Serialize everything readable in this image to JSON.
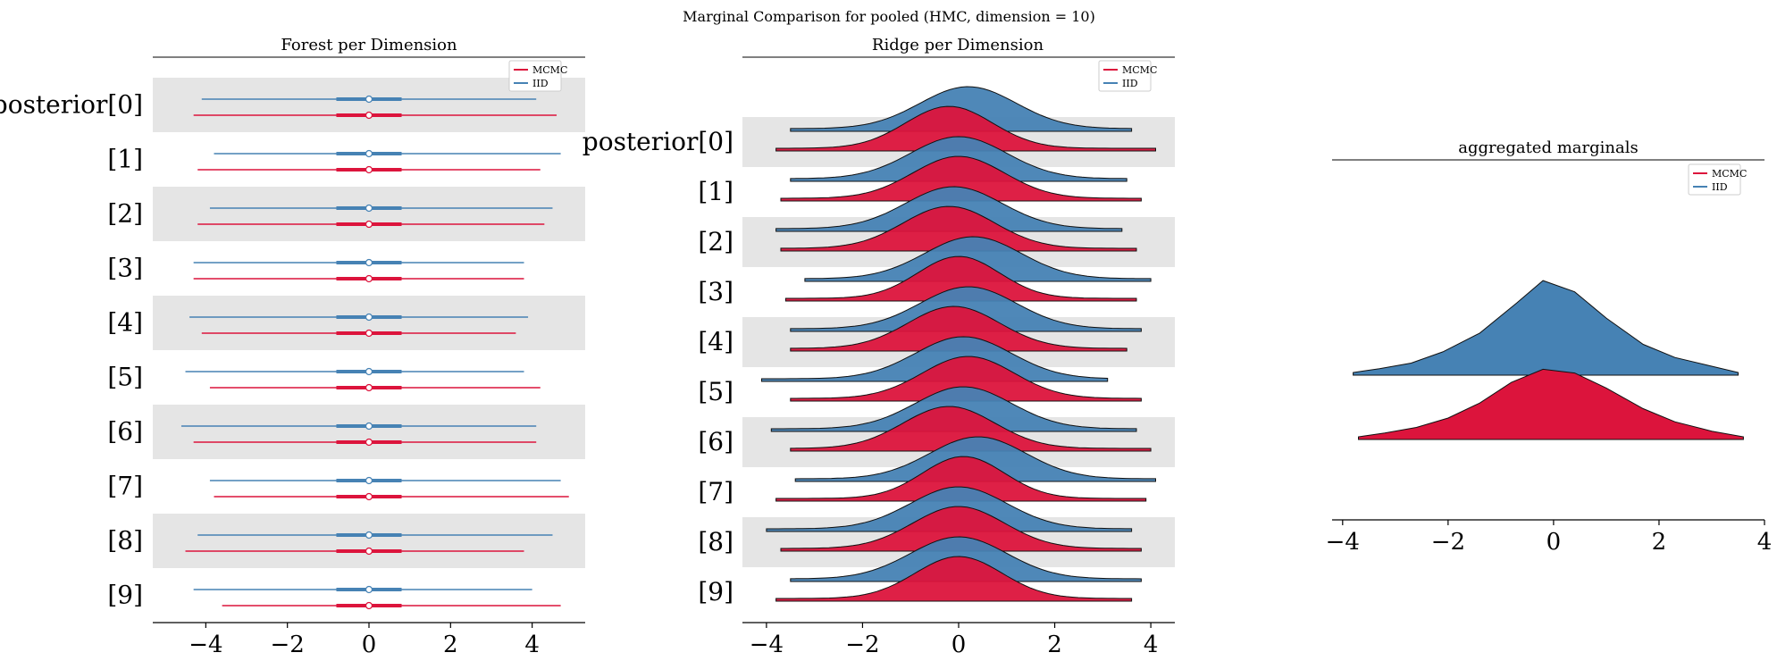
{
  "suptitle": "Marginal Comparison for pooled (HMC, dimension = 10)",
  "colors": {
    "mcmc": "#DC143C",
    "iid": "#4682B4",
    "band": "#E5E5E5"
  },
  "chart_data": [
    {
      "type": "forest",
      "title": "Forest per Dimension",
      "xlim": [
        -5.3,
        5.3
      ],
      "xticks": [
        -4,
        -2,
        0,
        2,
        4
      ],
      "xtick_labels": [
        "−4",
        "−2",
        "0",
        "2",
        "4"
      ],
      "row_labels": [
        "posterior[0]",
        "[1]",
        "[2]",
        "[3]",
        "[4]",
        "[5]",
        "[6]",
        "[7]",
        "[8]",
        "[9]"
      ],
      "legend": {
        "placement": "top-right",
        "entries": [
          "MCMC",
          "IID"
        ]
      },
      "series": [
        {
          "name": "IID",
          "color_key": "iid",
          "intervals": [
            {
              "lo": -4.1,
              "hi": 4.1,
              "q25": -0.8,
              "q75": 0.8,
              "median": 0.0
            },
            {
              "lo": -3.8,
              "hi": 4.7,
              "q25": -0.8,
              "q75": 0.8,
              "median": 0.0
            },
            {
              "lo": -3.9,
              "hi": 4.5,
              "q25": -0.8,
              "q75": 0.8,
              "median": 0.0
            },
            {
              "lo": -4.3,
              "hi": 3.8,
              "q25": -0.8,
              "q75": 0.8,
              "median": 0.0
            },
            {
              "lo": -4.4,
              "hi": 3.9,
              "q25": -0.8,
              "q75": 0.8,
              "median": 0.0
            },
            {
              "lo": -4.5,
              "hi": 3.8,
              "q25": -0.8,
              "q75": 0.8,
              "median": 0.0
            },
            {
              "lo": -4.6,
              "hi": 4.1,
              "q25": -0.8,
              "q75": 0.8,
              "median": 0.0
            },
            {
              "lo": -3.9,
              "hi": 4.7,
              "q25": -0.8,
              "q75": 0.8,
              "median": 0.0
            },
            {
              "lo": -4.2,
              "hi": 4.5,
              "q25": -0.8,
              "q75": 0.8,
              "median": 0.0
            },
            {
              "lo": -4.3,
              "hi": 4.0,
              "q25": -0.8,
              "q75": 0.8,
              "median": 0.0
            }
          ]
        },
        {
          "name": "MCMC",
          "color_key": "mcmc",
          "intervals": [
            {
              "lo": -4.3,
              "hi": 4.6,
              "q25": -0.8,
              "q75": 0.8,
              "median": 0.0
            },
            {
              "lo": -4.2,
              "hi": 4.2,
              "q25": -0.8,
              "q75": 0.8,
              "median": 0.0
            },
            {
              "lo": -4.2,
              "hi": 4.3,
              "q25": -0.8,
              "q75": 0.8,
              "median": 0.0
            },
            {
              "lo": -4.3,
              "hi": 3.8,
              "q25": -0.8,
              "q75": 0.8,
              "median": 0.0
            },
            {
              "lo": -4.1,
              "hi": 3.6,
              "q25": -0.8,
              "q75": 0.8,
              "median": 0.0
            },
            {
              "lo": -3.9,
              "hi": 4.2,
              "q25": -0.8,
              "q75": 0.8,
              "median": 0.0
            },
            {
              "lo": -4.3,
              "hi": 4.1,
              "q25": -0.8,
              "q75": 0.8,
              "median": 0.0
            },
            {
              "lo": -3.8,
              "hi": 4.9,
              "q25": -0.8,
              "q75": 0.8,
              "median": 0.0
            },
            {
              "lo": -4.5,
              "hi": 3.8,
              "q25": -0.8,
              "q75": 0.8,
              "median": 0.0
            },
            {
              "lo": -3.6,
              "hi": 4.7,
              "q25": -0.8,
              "q75": 0.8,
              "median": 0.0
            }
          ]
        }
      ]
    },
    {
      "type": "ridge",
      "title": "Ridge per Dimension",
      "xlim": [
        -4.5,
        4.5
      ],
      "xticks": [
        -4,
        -2,
        0,
        2,
        4
      ],
      "xtick_labels": [
        "−4",
        "−2",
        "0",
        "2",
        "4"
      ],
      "row_labels": [
        "posterior[0]",
        "[1]",
        "[2]",
        "[3]",
        "[4]",
        "[5]",
        "[6]",
        "[7]",
        "[8]",
        "[9]"
      ],
      "legend": {
        "placement": "top-right",
        "entries": [
          "MCMC",
          "IID"
        ]
      },
      "series": [
        {
          "name": "IID",
          "color_key": "iid",
          "densities": [
            {
              "lo": -3.5,
              "hi": 3.6,
              "mu": 0.2,
              "sd": 1.0
            },
            {
              "lo": -3.5,
              "hi": 3.5,
              "mu": 0.0,
              "sd": 1.0
            },
            {
              "lo": -3.8,
              "hi": 3.4,
              "mu": -0.1,
              "sd": 1.0
            },
            {
              "lo": -3.2,
              "hi": 4.0,
              "mu": 0.3,
              "sd": 1.0
            },
            {
              "lo": -3.5,
              "hi": 3.8,
              "mu": 0.2,
              "sd": 1.0
            },
            {
              "lo": -4.1,
              "hi": 3.1,
              "mu": 0.1,
              "sd": 1.0
            },
            {
              "lo": -3.9,
              "hi": 3.7,
              "mu": 0.1,
              "sd": 1.0
            },
            {
              "lo": -3.4,
              "hi": 4.1,
              "mu": 0.4,
              "sd": 1.0
            },
            {
              "lo": -4.0,
              "hi": 3.6,
              "mu": 0.0,
              "sd": 1.0
            },
            {
              "lo": -3.5,
              "hi": 3.8,
              "mu": 0.0,
              "sd": 1.0
            }
          ]
        },
        {
          "name": "MCMC",
          "color_key": "mcmc",
          "densities": [
            {
              "lo": -3.8,
              "hi": 4.1,
              "mu": -0.2,
              "sd": 0.9
            },
            {
              "lo": -3.7,
              "hi": 3.8,
              "mu": 0.0,
              "sd": 0.95
            },
            {
              "lo": -3.7,
              "hi": 3.7,
              "mu": -0.2,
              "sd": 0.95
            },
            {
              "lo": -3.6,
              "hi": 3.7,
              "mu": 0.0,
              "sd": 0.85
            },
            {
              "lo": -3.5,
              "hi": 3.5,
              "mu": -0.1,
              "sd": 0.95
            },
            {
              "lo": -3.5,
              "hi": 3.8,
              "mu": 0.2,
              "sd": 0.95
            },
            {
              "lo": -3.5,
              "hi": 4.0,
              "mu": -0.2,
              "sd": 0.95
            },
            {
              "lo": -3.8,
              "hi": 3.9,
              "mu": 0.1,
              "sd": 0.85
            },
            {
              "lo": -3.7,
              "hi": 3.8,
              "mu": 0.0,
              "sd": 0.95
            },
            {
              "lo": -3.8,
              "hi": 3.6,
              "mu": 0.0,
              "sd": 0.9
            }
          ]
        }
      ]
    },
    {
      "type": "ridge",
      "title": "aggregated marginals",
      "xlim": [
        -4.2,
        4.0
      ],
      "xticks": [
        -4,
        -2,
        0,
        2,
        4
      ],
      "xtick_labels": [
        "−4",
        "−2",
        "0",
        "2",
        "4"
      ],
      "legend": {
        "placement": "top-right",
        "entries": [
          "MCMC",
          "IID"
        ]
      },
      "series": [
        {
          "name": "IID",
          "color_key": "iid",
          "points": [
            [
              -3.8,
              0.0
            ],
            [
              -3.3,
              0.02
            ],
            [
              -2.7,
              0.05
            ],
            [
              -2.1,
              0.11
            ],
            [
              -1.4,
              0.21
            ],
            [
              -0.7,
              0.37
            ],
            [
              -0.2,
              0.49
            ],
            [
              0.4,
              0.43
            ],
            [
              1.0,
              0.29
            ],
            [
              1.7,
              0.15
            ],
            [
              2.3,
              0.08
            ],
            [
              2.9,
              0.04
            ],
            [
              3.5,
              0.0
            ]
          ]
        },
        {
          "name": "MCMC",
          "color_key": "mcmc",
          "points": [
            [
              -3.7,
              0.0
            ],
            [
              -3.2,
              0.02
            ],
            [
              -2.6,
              0.05
            ],
            [
              -2.0,
              0.1
            ],
            [
              -1.4,
              0.18
            ],
            [
              -0.8,
              0.29
            ],
            [
              -0.2,
              0.36
            ],
            [
              0.4,
              0.34
            ],
            [
              1.0,
              0.26
            ],
            [
              1.7,
              0.15
            ],
            [
              2.3,
              0.08
            ],
            [
              3.0,
              0.03
            ],
            [
              3.6,
              0.0
            ]
          ]
        }
      ]
    }
  ]
}
